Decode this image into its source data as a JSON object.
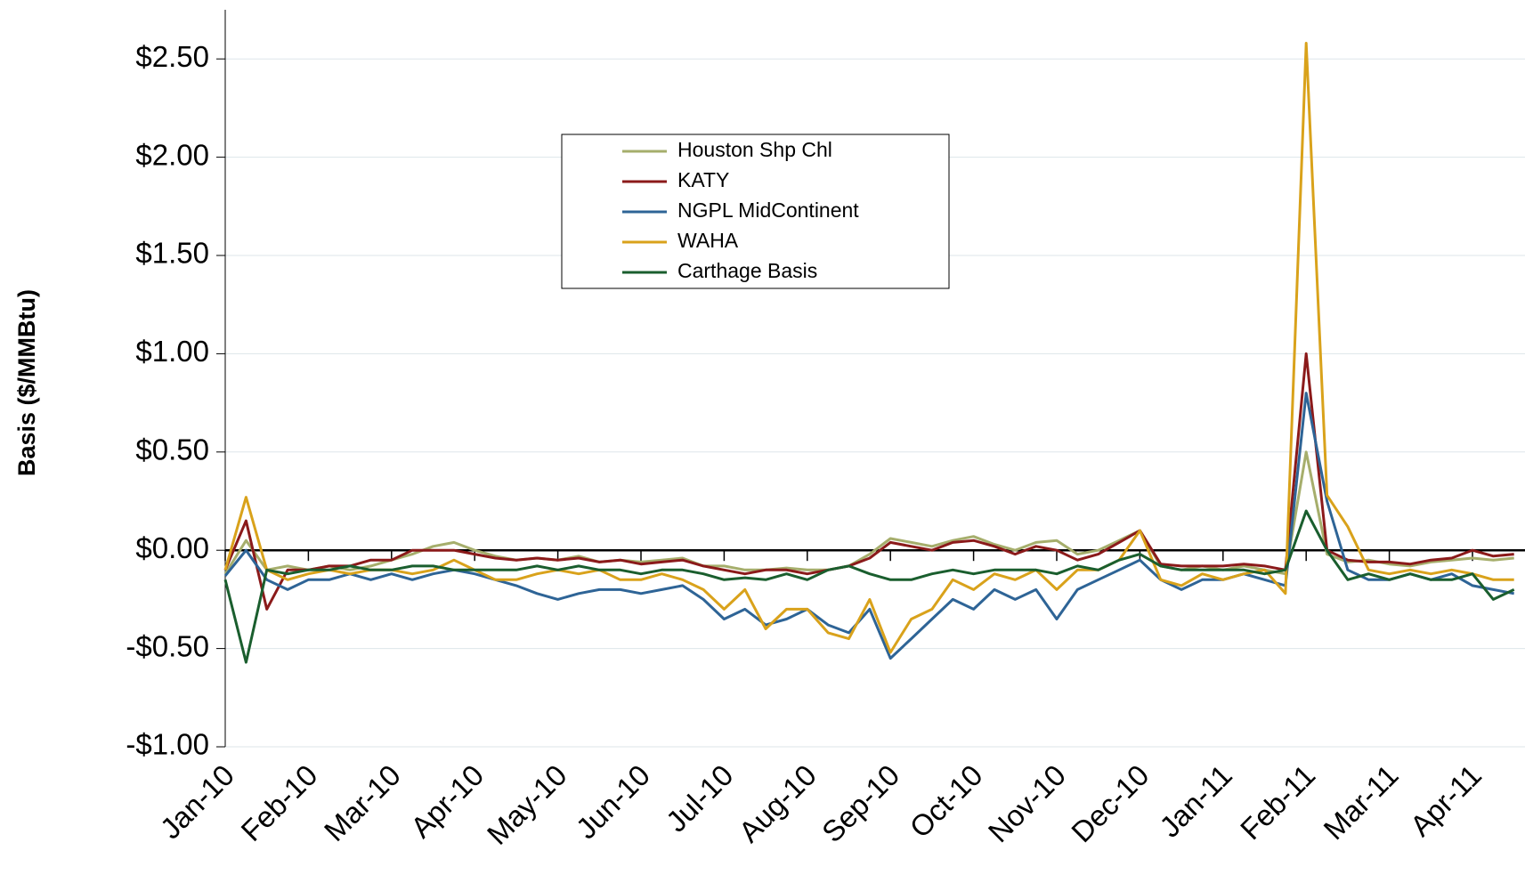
{
  "chart_data": {
    "type": "line",
    "y_label": "Basis ($/MMBtu)",
    "categories": [
      "Jan-10",
      null,
      null,
      null,
      "Feb-10",
      null,
      null,
      null,
      "Mar-10",
      null,
      null,
      null,
      "Apr-10",
      null,
      null,
      null,
      "May-10",
      null,
      null,
      null,
      "Jun-10",
      null,
      null,
      null,
      "Jul-10",
      null,
      null,
      null,
      "Aug-10",
      null,
      null,
      null,
      "Sep-10",
      null,
      null,
      null,
      "Oct-10",
      null,
      null,
      null,
      "Nov-10",
      null,
      null,
      null,
      "Dec-10",
      null,
      null,
      null,
      "Jan-11",
      null,
      null,
      null,
      "Feb-11",
      null,
      null,
      null,
      "Mar-11",
      null,
      null,
      null,
      "Apr-11",
      null,
      null
    ],
    "series": [
      {
        "name": "Houston Shp Chl",
        "color": "#a6ae6c",
        "values": [
          -0.12,
          0.05,
          -0.1,
          -0.08,
          -0.1,
          -0.08,
          -0.1,
          -0.08,
          -0.05,
          -0.02,
          0.02,
          0.04,
          0.0,
          -0.03,
          -0.05,
          -0.04,
          -0.05,
          -0.03,
          -0.06,
          -0.05,
          -0.06,
          -0.05,
          -0.04,
          -0.08,
          -0.08,
          -0.1,
          -0.1,
          -0.09,
          -0.1,
          -0.1,
          -0.08,
          -0.02,
          0.06,
          0.04,
          0.02,
          0.05,
          0.07,
          0.03,
          0.0,
          0.04,
          0.05,
          -0.02,
          0.0,
          0.05,
          0.1,
          -0.08,
          -0.1,
          -0.08,
          -0.1,
          -0.08,
          -0.1,
          -0.12,
          0.5,
          -0.02,
          -0.06,
          -0.05,
          -0.07,
          -0.08,
          -0.06,
          -0.05,
          -0.04,
          -0.05,
          -0.04
        ]
      },
      {
        "name": "KATY",
        "color": "#8b1a1a",
        "values": [
          -0.1,
          0.15,
          -0.3,
          -0.1,
          -0.1,
          -0.08,
          -0.08,
          -0.05,
          -0.05,
          0.0,
          0.0,
          0.0,
          -0.02,
          -0.04,
          -0.05,
          -0.04,
          -0.05,
          -0.04,
          -0.06,
          -0.05,
          -0.07,
          -0.06,
          -0.05,
          -0.08,
          -0.1,
          -0.12,
          -0.1,
          -0.1,
          -0.12,
          -0.1,
          -0.08,
          -0.04,
          0.04,
          0.02,
          0.0,
          0.04,
          0.05,
          0.02,
          -0.02,
          0.02,
          0.0,
          -0.05,
          -0.02,
          0.04,
          0.1,
          -0.07,
          -0.08,
          -0.08,
          -0.08,
          -0.07,
          -0.08,
          -0.1,
          1.0,
          0.0,
          -0.05,
          -0.06,
          -0.06,
          -0.07,
          -0.05,
          -0.04,
          0.0,
          -0.03,
          -0.02
        ]
      },
      {
        "name": "NGPL MidContinent",
        "color": "#2e6496",
        "values": [
          -0.13,
          0.0,
          -0.15,
          -0.2,
          -0.15,
          -0.15,
          -0.12,
          -0.15,
          -0.12,
          -0.15,
          -0.12,
          -0.1,
          -0.12,
          -0.15,
          -0.18,
          -0.22,
          -0.25,
          -0.22,
          -0.2,
          -0.2,
          -0.22,
          -0.2,
          -0.18,
          -0.25,
          -0.35,
          -0.3,
          -0.38,
          -0.35,
          -0.3,
          -0.38,
          -0.42,
          -0.3,
          -0.55,
          -0.45,
          -0.35,
          -0.25,
          -0.3,
          -0.2,
          -0.25,
          -0.2,
          -0.35,
          -0.2,
          -0.15,
          -0.1,
          -0.05,
          -0.15,
          -0.2,
          -0.15,
          -0.15,
          -0.12,
          -0.15,
          -0.18,
          0.8,
          0.25,
          -0.1,
          -0.15,
          -0.15,
          -0.12,
          -0.15,
          -0.12,
          -0.18,
          -0.2,
          -0.22
        ]
      },
      {
        "name": "WAHA",
        "color": "#d9a21b",
        "values": [
          -0.1,
          0.27,
          -0.1,
          -0.15,
          -0.12,
          -0.1,
          -0.12,
          -0.1,
          -0.1,
          -0.12,
          -0.1,
          -0.05,
          -0.1,
          -0.15,
          -0.15,
          -0.12,
          -0.1,
          -0.12,
          -0.1,
          -0.15,
          -0.15,
          -0.12,
          -0.15,
          -0.2,
          -0.3,
          -0.2,
          -0.4,
          -0.3,
          -0.3,
          -0.42,
          -0.45,
          -0.25,
          -0.52,
          -0.35,
          -0.3,
          -0.15,
          -0.2,
          -0.12,
          -0.15,
          -0.1,
          -0.2,
          -0.1,
          -0.1,
          -0.05,
          0.1,
          -0.15,
          -0.18,
          -0.12,
          -0.15,
          -0.12,
          -0.1,
          -0.22,
          2.58,
          0.28,
          0.12,
          -0.1,
          -0.12,
          -0.1,
          -0.12,
          -0.1,
          -0.12,
          -0.15,
          -0.15
        ]
      },
      {
        "name": "Carthage Basis",
        "color": "#1a5e2e",
        "values": [
          -0.15,
          -0.57,
          -0.1,
          -0.12,
          -0.1,
          -0.1,
          -0.08,
          -0.1,
          -0.1,
          -0.08,
          -0.08,
          -0.1,
          -0.1,
          -0.1,
          -0.1,
          -0.08,
          -0.1,
          -0.08,
          -0.1,
          -0.1,
          -0.12,
          -0.1,
          -0.1,
          -0.12,
          -0.15,
          -0.14,
          -0.15,
          -0.12,
          -0.15,
          -0.1,
          -0.08,
          -0.12,
          -0.15,
          -0.15,
          -0.12,
          -0.1,
          -0.12,
          -0.1,
          -0.1,
          -0.1,
          -0.12,
          -0.08,
          -0.1,
          -0.05,
          -0.02,
          -0.08,
          -0.1,
          -0.1,
          -0.1,
          -0.1,
          -0.12,
          -0.1,
          0.2,
          0.0,
          -0.15,
          -0.12,
          -0.15,
          -0.12,
          -0.15,
          -0.15,
          -0.12,
          -0.25,
          -0.2
        ]
      }
    ],
    "ylim": [
      -1,
      2.75
    ],
    "yticks": [
      {
        "value": 2.5,
        "label": "$2.50"
      },
      {
        "value": 2,
        "label": "$2.00"
      },
      {
        "value": 1.5,
        "label": "$1.50"
      },
      {
        "value": 1,
        "label": "$1.00"
      },
      {
        "value": 0.5,
        "label": "$0.50"
      },
      {
        "value": 0,
        "label": "$0.00"
      },
      {
        "value": -0.5,
        "label": "-$0.50"
      },
      {
        "value": -1,
        "label": "-$1.00"
      }
    ],
    "grid": true,
    "legend": "upper center"
  }
}
